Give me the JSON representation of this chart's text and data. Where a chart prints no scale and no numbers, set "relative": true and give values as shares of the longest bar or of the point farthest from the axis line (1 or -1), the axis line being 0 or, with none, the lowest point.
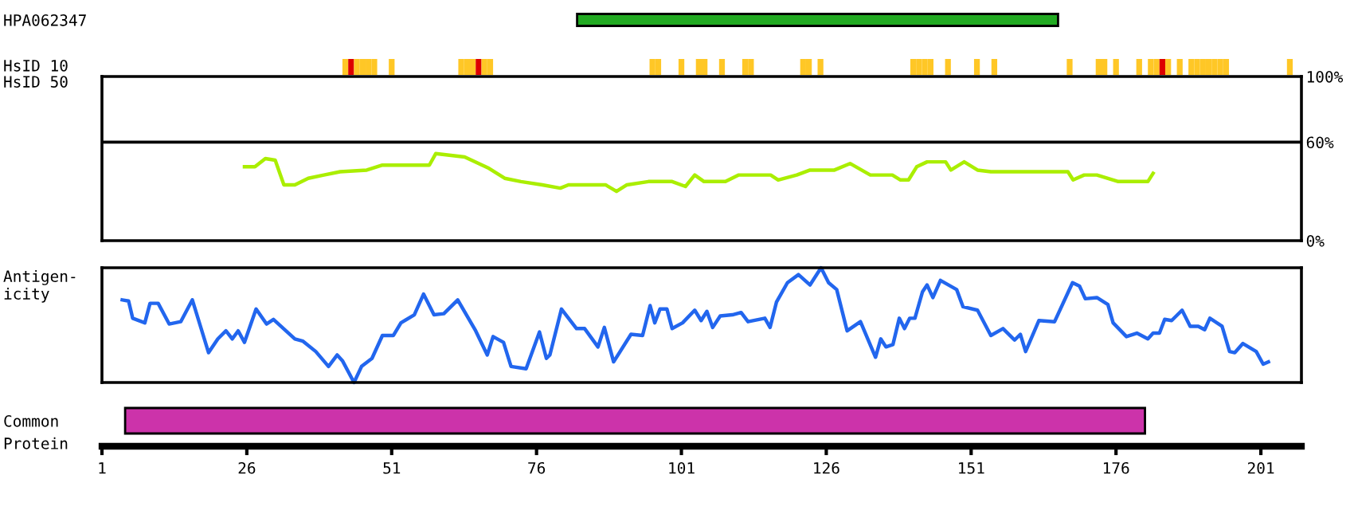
{
  "chart_data": [
    {
      "type": "bar",
      "orientation": "horizontal",
      "categories": [
        "HPA062347"
      ],
      "base": [
        83
      ],
      "values": [
        83
      ],
      "color": "#22aa22",
      "xlim": [
        1,
        208
      ],
      "tick_labels": "y"
    },
    {
      "type": "bar",
      "ylabel": "HsID 10",
      "relative": true,
      "xlim": [
        1,
        208
      ],
      "tick_labels": false,
      "x": [
        43,
        44,
        45,
        46,
        47,
        48,
        51,
        63,
        64,
        65,
        66,
        67,
        68,
        96,
        97,
        101,
        104,
        105,
        108,
        112,
        113,
        122,
        123,
        125,
        141,
        142,
        143,
        144,
        147,
        152,
        155,
        168,
        173,
        174,
        176,
        180,
        182,
        183,
        184,
        185,
        187,
        189,
        190,
        191,
        192,
        193,
        194,
        195,
        206
      ],
      "values": [
        1,
        1,
        1,
        1,
        1,
        1,
        1,
        1,
        1,
        1,
        1,
        1,
        1,
        1,
        1,
        1,
        1,
        1,
        1,
        1,
        1,
        1,
        1,
        1,
        1,
        1,
        1,
        1,
        1,
        1,
        1,
        1,
        1,
        1,
        1,
        1,
        1,
        1,
        1,
        1,
        1,
        1,
        1,
        1,
        1,
        1,
        1,
        1,
        1
      ],
      "colors": [
        "#ffc726",
        "#dd0000",
        "#ffc726",
        "#ffc726",
        "#ffc726",
        "#ffc726",
        "#ffc726",
        "#ffc726",
        "#ffc726",
        "#ffc726",
        "#dd0000",
        "#ffc726",
        "#ffc726",
        "#ffc726",
        "#ffc726",
        "#ffc726",
        "#ffc726",
        "#ffc726",
        "#ffc726",
        "#ffc726",
        "#ffc726",
        "#ffc726",
        "#ffc726",
        "#ffc726",
        "#ffc726",
        "#ffc726",
        "#ffc726",
        "#ffc726",
        "#ffc726",
        "#ffc726",
        "#ffc726",
        "#ffc726",
        "#ffc726",
        "#ffc726",
        "#ffc726",
        "#ffc726",
        "#ffc726",
        "#ffc726",
        "#dd0000",
        "#ffc726",
        "#ffc726",
        "#ffc726",
        "#ffc726",
        "#ffc726",
        "#ffc726",
        "#ffc726",
        "#ffc726",
        "#ffc726",
        "#ffc726"
      ]
    },
    {
      "type": "line",
      "ylabel": "HsID 50",
      "color": "#aaee00",
      "xlim": [
        1,
        208
      ],
      "ylim": [
        0,
        100
      ],
      "tick_labels": "y",
      "yticks": [
        {
          "value": 0,
          "label": "0%"
        },
        {
          "value": 60,
          "label": "60%"
        },
        {
          "value": 100,
          "label": "100%"
        }
      ],
      "ref_lines": [
        {
          "axis": "y",
          "value": 60,
          "color": "#000000"
        }
      ],
      "x": [
        25.6,
        27.4,
        29.2,
        30.9,
        32.4,
        34.3,
        36.6,
        39.3,
        42.1,
        46.7,
        49.4,
        57.5,
        58.6,
        63.6,
        67.8,
        70.5,
        73.3,
        77,
        80.1,
        81.5,
        87.9,
        89.8,
        91.6,
        95.3,
        99.4,
        101.7,
        103.3,
        104.9,
        108.6,
        110.9,
        116.4,
        117.7,
        120.9,
        123.2,
        127.4,
        130.1,
        133.6,
        137.4,
        138.8,
        140.2,
        141.6,
        143.4,
        146.6,
        147.5,
        149.8,
        152.1,
        154.4,
        167.7,
        168.6,
        170.5,
        172.7,
        176.4,
        181.5,
        182.4
      ],
      "values": [
        45,
        45,
        50,
        49,
        34,
        34,
        38,
        40,
        42,
        43,
        46,
        46,
        53,
        51,
        44,
        38,
        36,
        34,
        32,
        34,
        34,
        30,
        34,
        36,
        36,
        33,
        40,
        36,
        36,
        40,
        40,
        37,
        40,
        43,
        43,
        47,
        40,
        40,
        37,
        37,
        45,
        48,
        48,
        43,
        48,
        43,
        42,
        42,
        37,
        40,
        40,
        36,
        36,
        41
      ]
    },
    {
      "type": "line",
      "ylabel": "Antigen-\nicity",
      "color": "#2266ee",
      "relative": true,
      "xlim": [
        1,
        208
      ],
      "tick_labels": false,
      "x": [
        4.5,
        5.6,
        6.3,
        8.4,
        9.3,
        10.7,
        12.6,
        14.6,
        16.6,
        19.4,
        21,
        22.4,
        23.5,
        24.5,
        25.6,
        27.6,
        29.4,
        30.6,
        34.3,
        35.7,
        37.9,
        40.1,
        41.6,
        42.5,
        44.5,
        45.8,
        47.6,
        49.4,
        51.3,
        52.6,
        54.9,
        56.5,
        58.3,
        60,
        62.4,
        65.5,
        67.5,
        68.5,
        70.3,
        71.6,
        74.2,
        76.5,
        77.7,
        78.3,
        80.3,
        82.9,
        84.3,
        86.6,
        87.7,
        89.3,
        92.3,
        94.3,
        95.6,
        96.4,
        97.3,
        98.5,
        99.4,
        101.2,
        103.3,
        104.4,
        105.4,
        106.4,
        107.7,
        109.8,
        111.3,
        112.5,
        115.4,
        116.3,
        117.4,
        119.3,
        121.2,
        123.2,
        125.1,
        126.4,
        127.8,
        129.6,
        131.9,
        134.5,
        135.4,
        136.3,
        137.5,
        138.6,
        139.5,
        140.4,
        141.3,
        142.6,
        143.4,
        144.4,
        145.7,
        148.5,
        149.6,
        152.1,
        154.4,
        156.5,
        158.5,
        159.5,
        160.4,
        162.7,
        165.4,
        168.5,
        169.7,
        170.7,
        172.7,
        174.6,
        175.5,
        177.8,
        179.6,
        181.5,
        182.4,
        183.5,
        184.4,
        185.6,
        187.4,
        188.8,
        190.2,
        191.3,
        192.2,
        194.3,
        195.6,
        196.5,
        197.9,
        200.2,
        201.4,
        202.3
      ],
      "values": [
        0.72,
        0.71,
        0.56,
        0.52,
        0.69,
        0.69,
        0.51,
        0.53,
        0.72,
        0.26,
        0.38,
        0.45,
        0.38,
        0.45,
        0.35,
        0.64,
        0.51,
        0.55,
        0.38,
        0.36,
        0.27,
        0.14,
        0.24,
        0.19,
        0,
        0.14,
        0.21,
        0.41,
        0.41,
        0.52,
        0.59,
        0.77,
        0.59,
        0.6,
        0.72,
        0.45,
        0.24,
        0.4,
        0.35,
        0.14,
        0.12,
        0.44,
        0.21,
        0.24,
        0.64,
        0.47,
        0.47,
        0.31,
        0.48,
        0.18,
        0.42,
        0.41,
        0.67,
        0.52,
        0.64,
        0.64,
        0.47,
        0.52,
        0.63,
        0.54,
        0.62,
        0.48,
        0.58,
        0.59,
        0.61,
        0.53,
        0.56,
        0.48,
        0.7,
        0.87,
        0.94,
        0.85,
        1,
        0.87,
        0.81,
        0.45,
        0.53,
        0.22,
        0.38,
        0.31,
        0.33,
        0.56,
        0.47,
        0.56,
        0.56,
        0.79,
        0.85,
        0.74,
        0.89,
        0.81,
        0.66,
        0.63,
        0.41,
        0.47,
        0.37,
        0.42,
        0.27,
        0.54,
        0.53,
        0.87,
        0.84,
        0.73,
        0.74,
        0.68,
        0.52,
        0.4,
        0.43,
        0.38,
        0.43,
        0.43,
        0.55,
        0.54,
        0.63,
        0.49,
        0.49,
        0.46,
        0.56,
        0.49,
        0.27,
        0.26,
        0.34,
        0.27,
        0.16,
        0.18
      ]
    },
    {
      "type": "bar",
      "orientation": "horizontal",
      "categories": [
        "Common"
      ],
      "base": [
        5
      ],
      "values": [
        176
      ],
      "color": "#cc33aa",
      "xlabel": "Protein",
      "xlim": [
        1,
        208
      ],
      "xticks": [
        1,
        26,
        51,
        76,
        101,
        126,
        151,
        176,
        201
      ]
    }
  ]
}
